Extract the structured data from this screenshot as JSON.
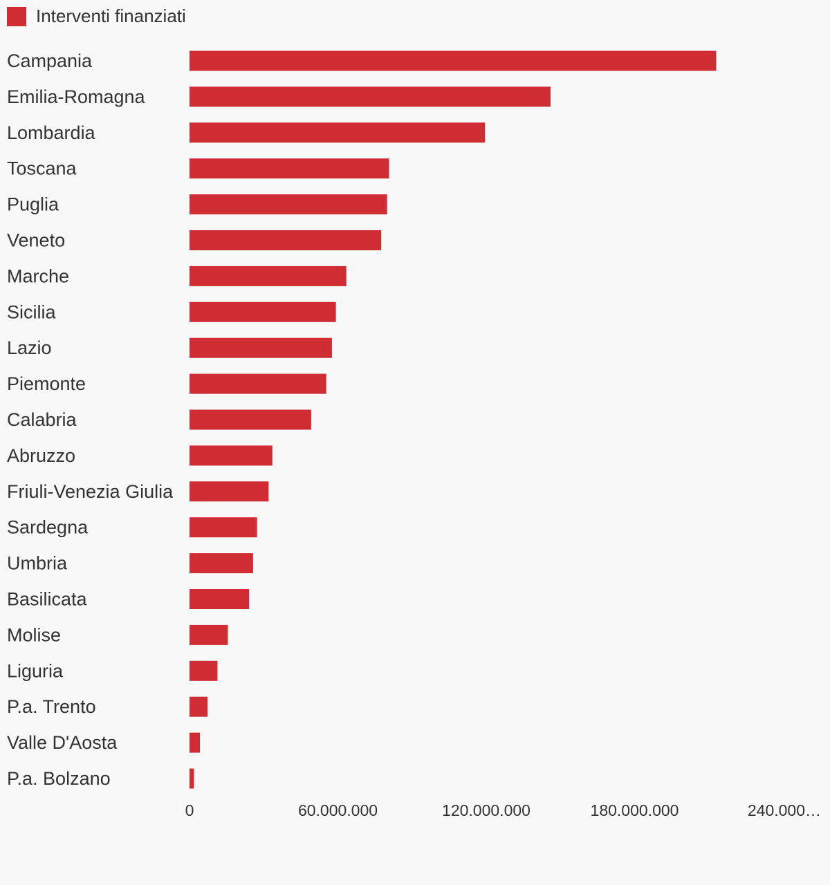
{
  "legend": {
    "label": "Interventi finanziati",
    "color": "#cf2c33"
  },
  "chart_data": {
    "type": "bar",
    "orientation": "horizontal",
    "categories": [
      "Campania",
      "Emilia-Romagna",
      "Lombardia",
      "Toscana",
      "Puglia",
      "Veneto",
      "Marche",
      "Sicilia",
      "Lazio",
      "Piemonte",
      "Calabria",
      "Abruzzo",
      "Friuli-Venezia Giulia",
      "Sardegna",
      "Umbria",
      "Basilicata",
      "Molise",
      "Liguria",
      "P.a. Trento",
      "Valle D'Aosta",
      "P.a. Bolzano"
    ],
    "series": [
      {
        "name": "Interventi finanziati",
        "color": "#cf2c33",
        "values": [
          213000000,
          146000000,
          119500000,
          80700000,
          79900000,
          77500000,
          63400000,
          59200000,
          57600000,
          55300000,
          49200000,
          33500000,
          32000000,
          27300000,
          25700000,
          24100000,
          15500000,
          11300000,
          7300000,
          4200000,
          1800000
        ]
      }
    ],
    "xticks": [
      "0",
      "60.000.000",
      "120.000.000",
      "180.000.000",
      "240.000…"
    ],
    "xlim": [
      0,
      240000000
    ],
    "grid": false,
    "legend_position": "top-left"
  }
}
